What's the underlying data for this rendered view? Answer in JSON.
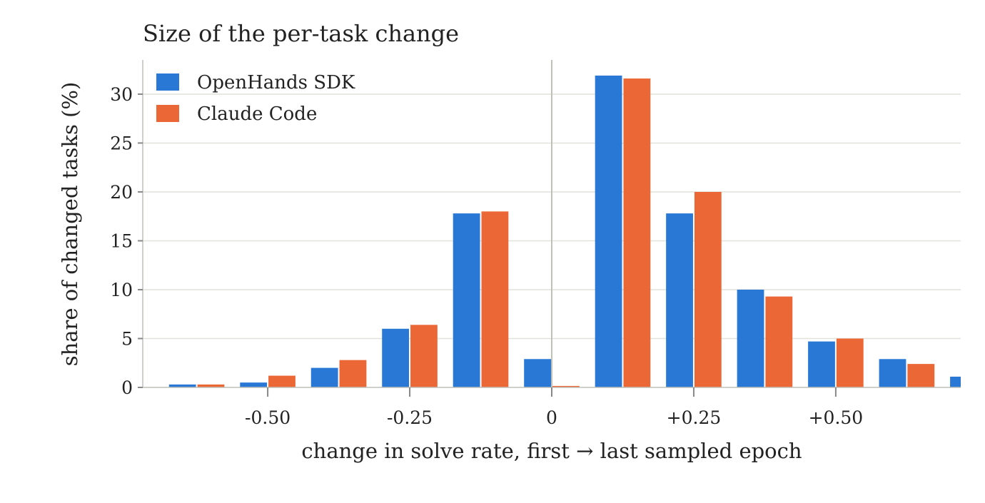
{
  "chart_data": {
    "type": "bar",
    "title": "Size of the per-task change",
    "xlabel": "change in solve rate, first → last sampled epoch",
    "ylabel": "share of changed tasks (%)",
    "x": [
      -0.625,
      -0.5,
      -0.375,
      -0.25,
      -0.125,
      0,
      0.125,
      0.25,
      0.375,
      0.5,
      0.625,
      0.75
    ],
    "bin_width": 0.125,
    "xlim": [
      -0.72,
      0.72
    ],
    "ylim": [
      0,
      33.5
    ],
    "yticks": [
      0,
      5,
      10,
      15,
      20,
      25,
      30
    ],
    "xticks": [
      {
        "value": -0.5,
        "label": "-0.50"
      },
      {
        "value": -0.25,
        "label": "-0.25"
      },
      {
        "value": 0,
        "label": "0"
      },
      {
        "value": 0.25,
        "label": "+0.25"
      },
      {
        "value": 0.5,
        "label": "+0.50"
      }
    ],
    "series": [
      {
        "name": "OpenHands SDK",
        "color": "#2a78d6",
        "values": [
          0.3,
          0.5,
          2.0,
          6.0,
          17.8,
          2.9,
          31.9,
          17.8,
          10.0,
          4.7,
          2.9,
          1.1
        ]
      },
      {
        "name": "Claude Code",
        "color": "#eb6836",
        "values": [
          0.3,
          1.2,
          2.8,
          6.4,
          18.0,
          0.15,
          31.6,
          20.0,
          9.3,
          5.0,
          2.4,
          0
        ]
      }
    ],
    "legend_position": "top-left",
    "grid": "y",
    "reference_line_x": 0
  }
}
